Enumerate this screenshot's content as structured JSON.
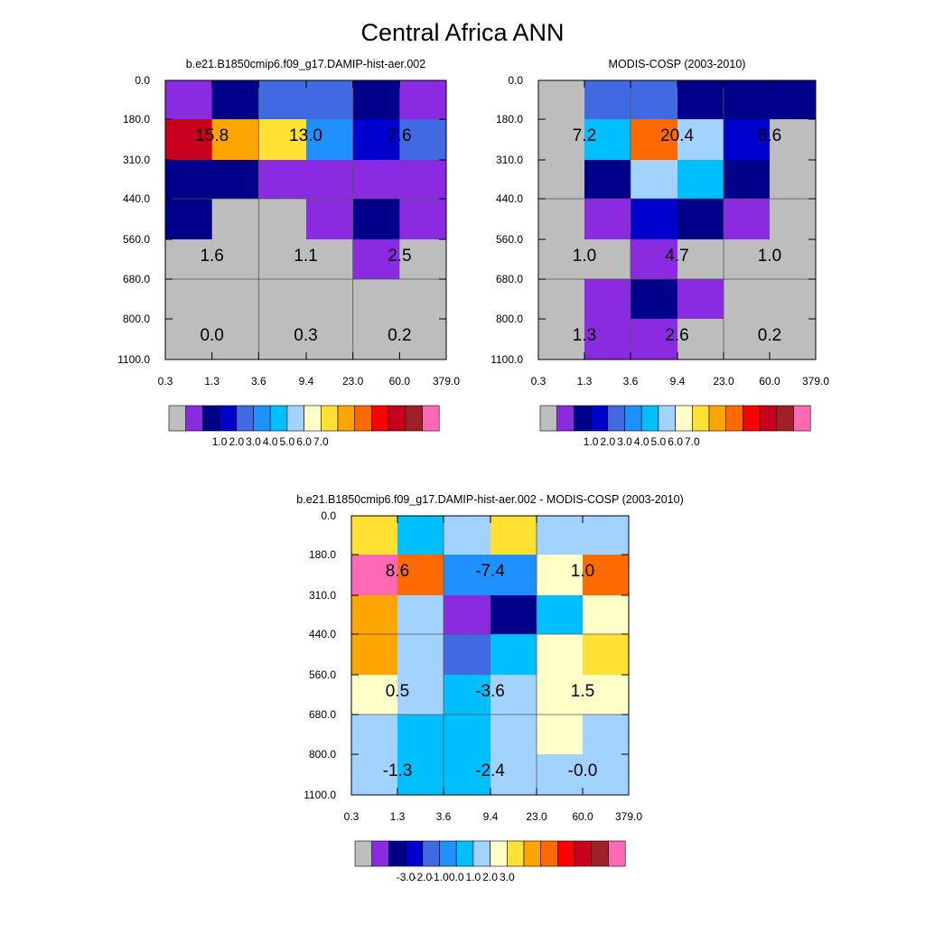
{
  "title": "Central Africa ANN",
  "chart_data": [
    {
      "id": "model",
      "type": "heatmap",
      "title": "b.e21.B1850cmip6.f09_g17.DAMIP-hist-aer.002",
      "x_ticks": [
        "0.3",
        "1.3",
        "3.6",
        "9.4",
        "23.0",
        "60.0",
        "379.0"
      ],
      "y_ticks": [
        "0.0",
        "180.0",
        "310.0",
        "440.0",
        "560.0",
        "680.0",
        "800.0",
        "1100.0"
      ],
      "cell_levels": [
        [
          1,
          2,
          4,
          4,
          2,
          1
        ],
        [
          13,
          10,
          9,
          5,
          3,
          4
        ],
        [
          2,
          2,
          1,
          1,
          1,
          1
        ],
        [
          2,
          0,
          0,
          1,
          2,
          1
        ],
        [
          0,
          0,
          0,
          0,
          1,
          0
        ],
        [
          0,
          0,
          0,
          0,
          0,
          0
        ],
        [
          0,
          0,
          0,
          0,
          0,
          0
        ]
      ],
      "box_values": [
        [
          "15.8",
          "13.0",
          "7.6"
        ],
        [
          "1.6",
          "1.1",
          "2.5"
        ],
        [
          "0.0",
          "0.3",
          "0.2"
        ]
      ],
      "colorbar": {
        "colors": [
          "#bdbdbd",
          "#8a2be2",
          "#00008b",
          "#0000cd",
          "#4169e1",
          "#1e90ff",
          "#00bfff",
          "#a2d2ff",
          "#ffffc8",
          "#ffe033",
          "#ffa500",
          "#ff6a00",
          "#ff0000",
          "#c8001e",
          "#a0202a",
          "#ff69b4"
        ],
        "labels": [
          "1.0",
          "2.0",
          "3.0",
          "4.0",
          "5.0",
          "6.0",
          "7.0"
        ]
      }
    },
    {
      "id": "obs",
      "type": "heatmap",
      "title": "MODIS-COSP (2003-2010)",
      "x_ticks": [
        "0.3",
        "1.3",
        "3.6",
        "9.4",
        "23.0",
        "60.0",
        "379.0"
      ],
      "y_ticks": [
        "0.0",
        "180.0",
        "310.0",
        "440.0",
        "560.0",
        "680.0",
        "800.0",
        "1100.0"
      ],
      "cell_levels": [
        [
          0,
          4,
          4,
          2,
          2,
          2
        ],
        [
          0,
          6,
          11,
          7,
          3,
          0
        ],
        [
          0,
          2,
          7,
          6,
          2,
          0
        ],
        [
          0,
          1,
          3,
          2,
          1,
          0
        ],
        [
          0,
          0,
          1,
          0,
          0,
          0
        ],
        [
          0,
          1,
          2,
          1,
          0,
          0
        ],
        [
          0,
          1,
          1,
          0,
          0,
          0
        ]
      ],
      "box_values": [
        [
          "7.2",
          "20.4",
          "6.6"
        ],
        [
          "1.0",
          "4.7",
          "1.0"
        ],
        [
          "1.3",
          "2.6",
          "0.2"
        ]
      ],
      "colorbar": {
        "colors": [
          "#bdbdbd",
          "#8a2be2",
          "#00008b",
          "#0000cd",
          "#4169e1",
          "#1e90ff",
          "#00bfff",
          "#a2d2ff",
          "#ffffc8",
          "#ffe033",
          "#ffa500",
          "#ff6a00",
          "#ff0000",
          "#c8001e",
          "#a0202a",
          "#ff69b4"
        ],
        "labels": [
          "1.0",
          "2.0",
          "3.0",
          "4.0",
          "5.0",
          "6.0",
          "7.0"
        ]
      }
    },
    {
      "id": "diff",
      "type": "heatmap",
      "title": "b.e21.B1850cmip6.f09_g17.DAMIP-hist-aer.002 - MODIS-COSP (2003-2010)",
      "x_ticks": [
        "0.3",
        "1.3",
        "3.6",
        "9.4",
        "23.0",
        "60.0",
        "379.0"
      ],
      "y_ticks": [
        "0.0",
        "180.0",
        "310.0",
        "440.0",
        "560.0",
        "680.0",
        "800.0",
        "1100.0"
      ],
      "cell_levels": [
        [
          9,
          6,
          7,
          9,
          7,
          7
        ],
        [
          15,
          11,
          5,
          5,
          8,
          11
        ],
        [
          10,
          7,
          1,
          2,
          6,
          8
        ],
        [
          10,
          7,
          4,
          6,
          8,
          9
        ],
        [
          8,
          7,
          6,
          7,
          8,
          8
        ],
        [
          7,
          6,
          6,
          7,
          8,
          7
        ],
        [
          7,
          6,
          6,
          7,
          7,
          7
        ]
      ],
      "box_values": [
        [
          "8.6",
          "-7.4",
          "1.0"
        ],
        [
          "0.5",
          "-3.6",
          "1.5"
        ],
        [
          "-1.3",
          "-2.4",
          "-0.0"
        ]
      ],
      "colorbar": {
        "colors": [
          "#bdbdbd",
          "#8a2be2",
          "#00008b",
          "#0000cd",
          "#4169e1",
          "#1e90ff",
          "#00bfff",
          "#a2d2ff",
          "#ffffc8",
          "#ffe033",
          "#ffa500",
          "#ff6a00",
          "#ff0000",
          "#c8001e",
          "#a0202a",
          "#ff69b4"
        ],
        "labels": [
          "-3.0",
          "-2.0",
          "-1.0",
          "0.0",
          "1.0",
          "2.0",
          "3.0"
        ]
      }
    }
  ]
}
